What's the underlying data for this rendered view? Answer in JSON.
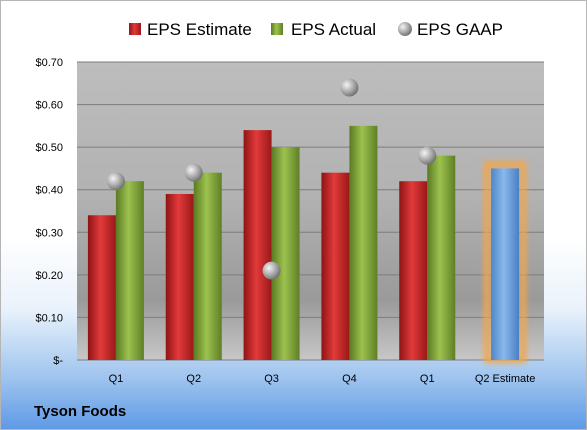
{
  "company": "Tyson Foods",
  "chart_data": {
    "type": "bar",
    "categories": [
      "Q1",
      "Q2",
      "Q3",
      "Q4",
      "Q1",
      "Q2 Estimate"
    ],
    "series": [
      {
        "name": "EPS Estimate",
        "type": "bar",
        "color": "#cc2b2b",
        "values": [
          0.34,
          0.39,
          0.54,
          0.44,
          0.42,
          null
        ]
      },
      {
        "name": "EPS Actual",
        "type": "bar",
        "color": "#7fa43a",
        "values": [
          0.42,
          0.44,
          0.5,
          0.55,
          0.48,
          0.45
        ]
      },
      {
        "name": "EPS GAAP",
        "type": "scatter",
        "color": "#a9a9a9",
        "values": [
          0.42,
          0.44,
          0.21,
          0.64,
          0.48,
          null
        ]
      }
    ],
    "forecast_bar": {
      "category": "Q2 Estimate",
      "value": 0.45,
      "color": "#6a9fdb",
      "glow": "#f3a64a"
    },
    "ylim": [
      0,
      0.7
    ],
    "yticks": [
      0,
      0.1,
      0.2,
      0.3,
      0.4,
      0.5,
      0.6,
      0.7
    ],
    "ytick_labels": [
      "$-",
      "$0.10",
      "$0.20",
      "$0.30",
      "$0.40",
      "$0.50",
      "$0.60",
      "$0.70"
    ],
    "grid": true,
    "legend": "top",
    "title": "",
    "xlabel": "",
    "ylabel": ""
  }
}
